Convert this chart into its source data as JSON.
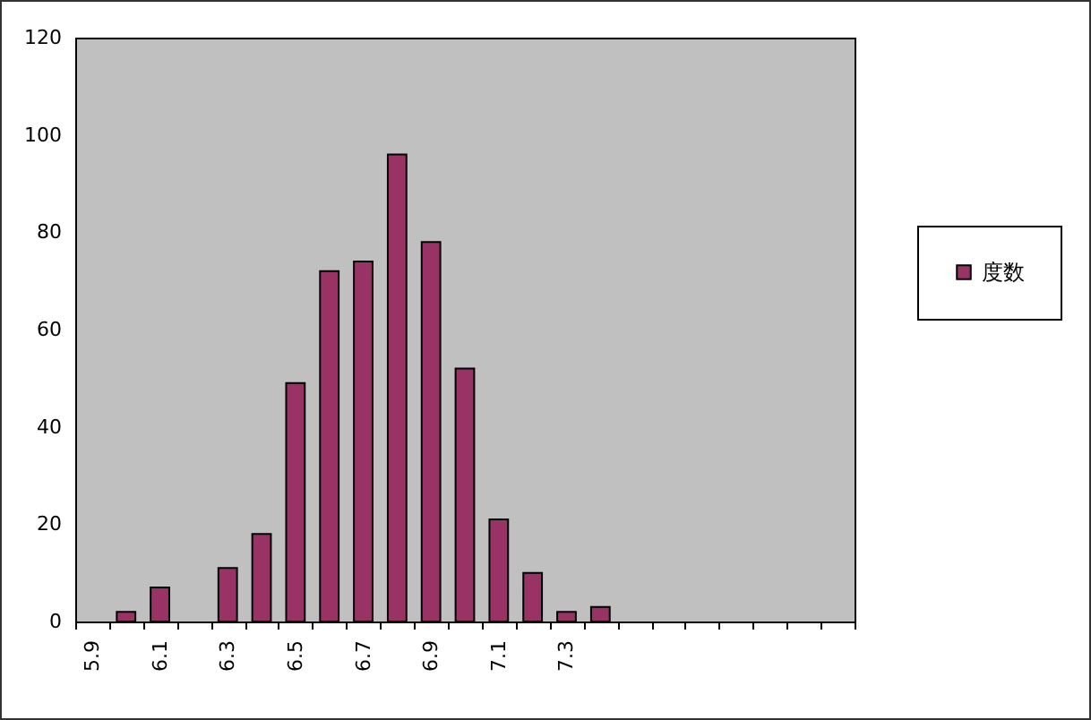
{
  "chart_data": {
    "type": "bar",
    "categories": [
      "5.9",
      null,
      "6.1",
      null,
      "6.3",
      null,
      "6.5",
      null,
      "6.7",
      null,
      "6.9",
      null,
      "7.1",
      null,
      "7.3",
      null,
      null,
      null,
      null,
      null,
      null,
      null,
      null
    ],
    "series": [
      {
        "name": "度数",
        "color": "#993366",
        "values": [
          null,
          2,
          7,
          null,
          11,
          18,
          49,
          72,
          74,
          96,
          78,
          52,
          21,
          10,
          2,
          3,
          null,
          null,
          null,
          null,
          null,
          null,
          null
        ]
      }
    ],
    "ylim": [
      0,
      120
    ],
    "yticks": [
      0,
      20,
      40,
      60,
      80,
      100,
      120
    ],
    "grid": false,
    "legend": "right"
  }
}
